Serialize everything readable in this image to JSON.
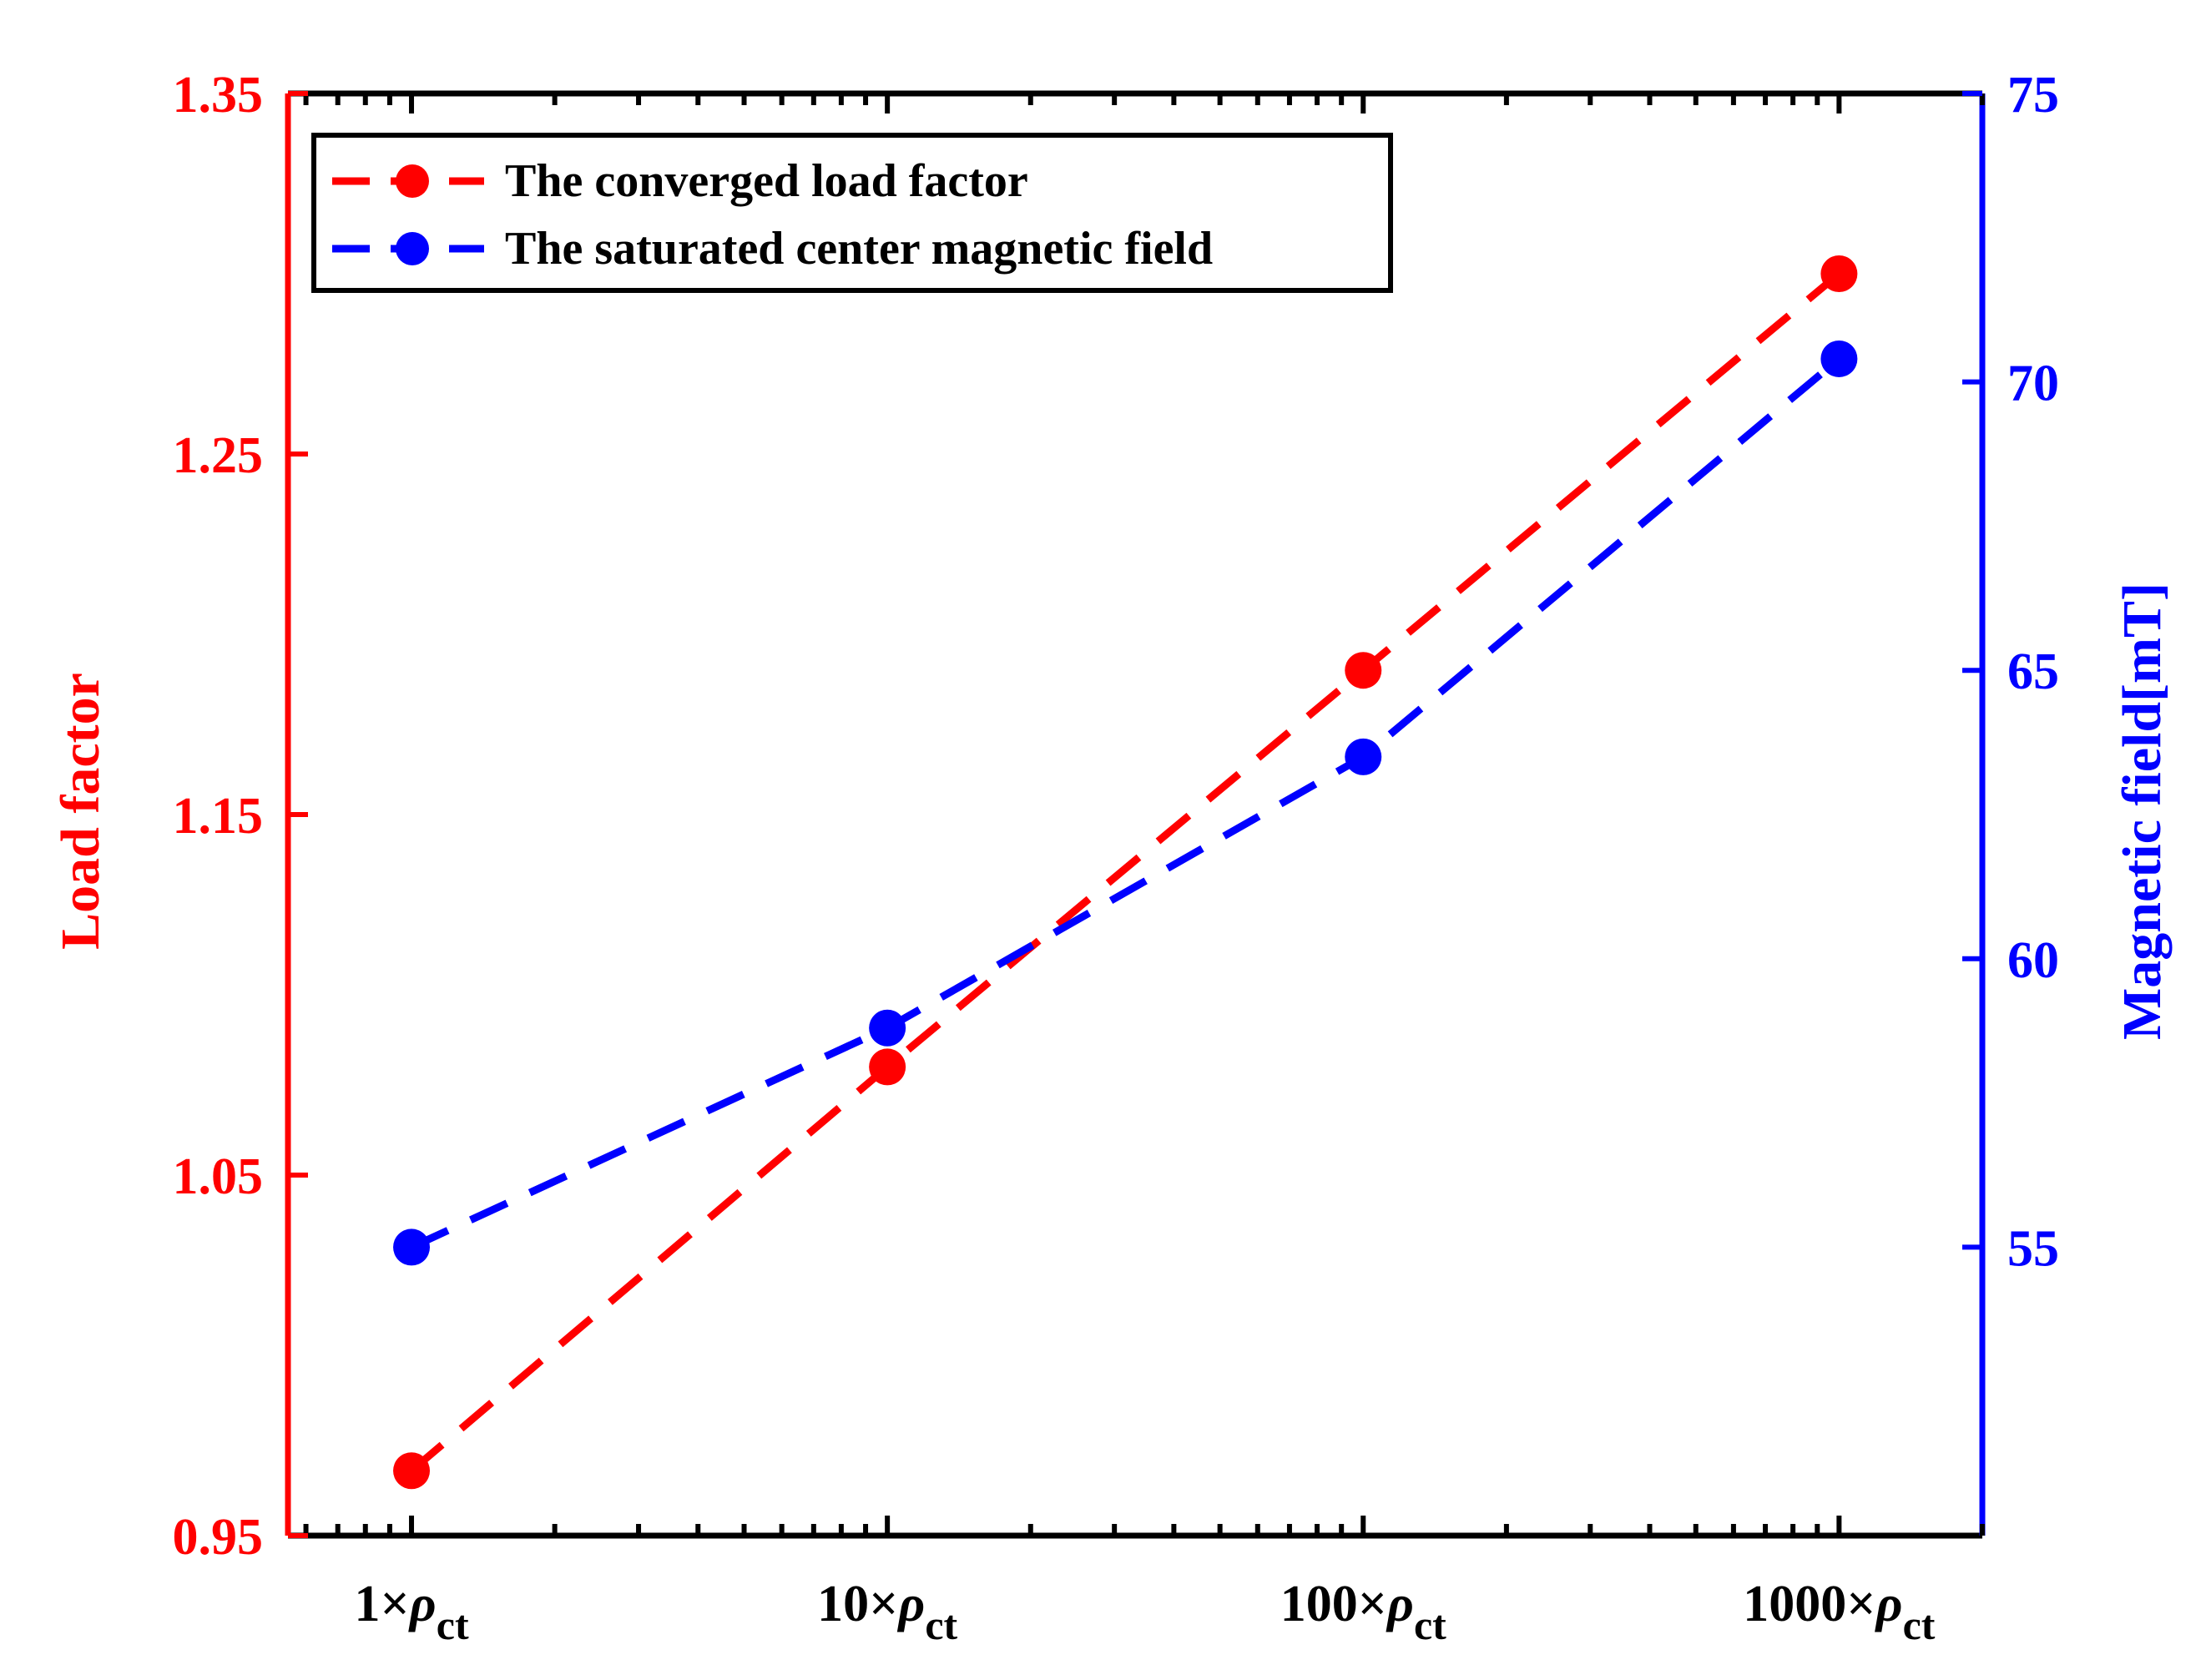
{
  "chart_data": {
    "type": "line",
    "title": "",
    "x_scale": "log",
    "x": [
      1,
      10,
      100,
      1000
    ],
    "xlim": [
      0.55,
      2000
    ],
    "categories": [
      {
        "prefix": "1×",
        "symbol": "ρ",
        "subscript": "ct"
      },
      {
        "prefix": "10×",
        "symbol": "ρ",
        "subscript": "ct"
      },
      {
        "prefix": "100×",
        "symbol": "ρ",
        "subscript": "ct"
      },
      {
        "prefix": "1000×",
        "symbol": "ρ",
        "subscript": "ct"
      }
    ],
    "y_left": {
      "label": "Load factor",
      "color": "#ff0000",
      "ylim": [
        0.95,
        1.35
      ],
      "ticks": [
        "0.95",
        "1.05",
        "1.15",
        "1.25",
        "1.35"
      ]
    },
    "y_right": {
      "label": "Magnetic field[mT]",
      "color": "#0000ff",
      "ylim": [
        50,
        75
      ],
      "ticks": [
        "55",
        "60",
        "65",
        "70",
        "75"
      ]
    },
    "series": [
      {
        "name": "The converged load factor",
        "axis": "left",
        "color": "#ff0000",
        "style": "dashed",
        "marker": "circle",
        "values": [
          0.968,
          1.08,
          1.19,
          1.3
        ]
      },
      {
        "name": "The saturated center magnetic field",
        "axis": "right",
        "color": "#0000ff",
        "style": "dashed",
        "marker": "circle",
        "values": [
          55.0,
          58.8,
          63.5,
          70.4
        ]
      }
    ],
    "legend": {
      "position": "top-left",
      "entries": [
        "The converged load factor",
        "The saturated center magnetic field"
      ]
    },
    "grid": false
  }
}
